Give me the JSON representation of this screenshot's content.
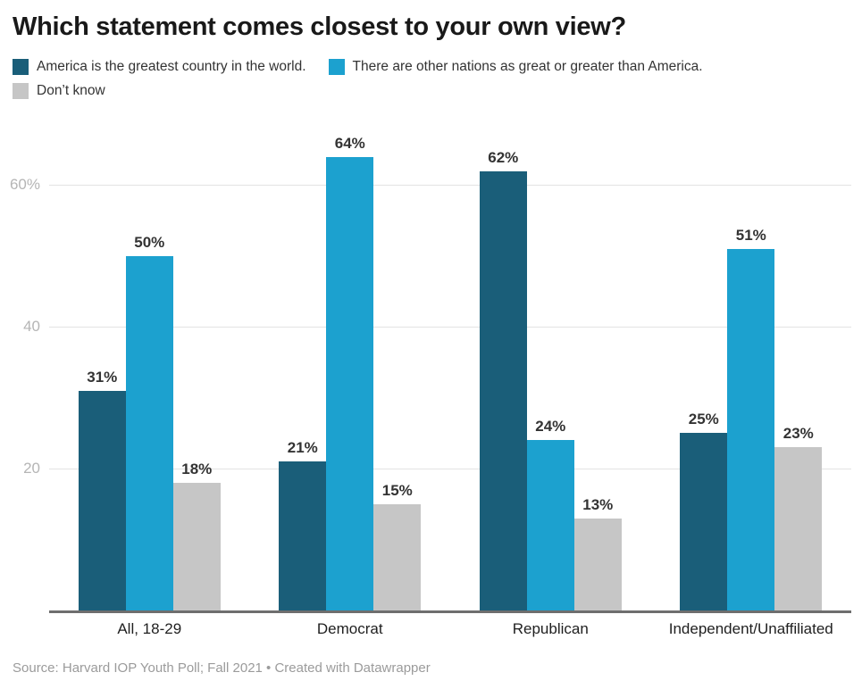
{
  "title": "Which statement comes closest to your own view?",
  "legend": {
    "items": [
      {
        "label": "America is the greatest country in the world.",
        "color": "#1a5e79"
      },
      {
        "label": "There are other nations as great or greater than America.",
        "color": "#1ca1cf"
      },
      {
        "label": "Don’t know",
        "color": "#c6c6c6"
      }
    ],
    "rows": [
      [
        0,
        1
      ],
      [
        2
      ]
    ]
  },
  "chart_data": {
    "type": "bar",
    "title": "Which statement comes closest to your own view?",
    "categories": [
      "All, 18-29",
      "Democrat",
      "Republican",
      "Independent/Unaffiliated"
    ],
    "series": [
      {
        "name": "America is the greatest country in the world.",
        "color": "#1a5e79",
        "values": [
          31,
          21,
          62,
          25
        ]
      },
      {
        "name": "There are other nations as great or greater than America.",
        "color": "#1ca1cf",
        "values": [
          50,
          64,
          24,
          51
        ]
      },
      {
        "name": "Don’t know",
        "color": "#c6c6c6",
        "values": [
          18,
          15,
          13,
          23
        ]
      }
    ],
    "value_suffix": "%",
    "xlabel": "",
    "ylabel": "",
    "ylim": [
      0,
      70
    ],
    "y_ticks": [
      {
        "value": 20,
        "label": "20"
      },
      {
        "value": 40,
        "label": "40"
      },
      {
        "value": 60,
        "label": "60%"
      }
    ],
    "grid": true,
    "legend_position": "top",
    "axis_line_color": "#6e6e6e",
    "gridline_color": "#e3e3e3"
  },
  "footer": {
    "source": "Source: Harvard IOP Youth Poll; Fall 2021 • Created with Datawrapper"
  }
}
